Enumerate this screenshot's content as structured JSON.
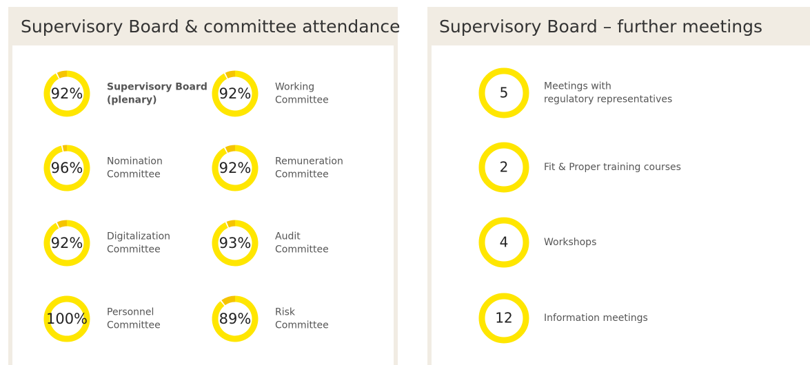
{
  "left_panel": {
    "title": "Supervisory Board & committee attendance",
    "items": [
      {
        "label_lines": [
          "Supervisory Board",
          "(plenary)"
        ],
        "value": 92,
        "value_label": "92%"
      },
      {
        "label_lines": [
          "Working",
          "Committee"
        ],
        "value": 92,
        "value_label": "92%"
      },
      {
        "label_lines": [
          "Nomination",
          "Committee"
        ],
        "value": 96,
        "value_label": "96%"
      },
      {
        "label_lines": [
          "Remuneration",
          "Committee"
        ],
        "value": 92,
        "value_label": "92%"
      },
      {
        "label_lines": [
          "Digitalization",
          "Committee"
        ],
        "value": 92,
        "value_label": "92%"
      },
      {
        "label_lines": [
          "Audit",
          "Committee"
        ],
        "value": 93,
        "value_label": "93%"
      },
      {
        "label_lines": [
          "Personnel",
          "Committee"
        ],
        "value": 100,
        "value_label": "100%"
      },
      {
        "label_lines": [
          "Risk",
          "Committee"
        ],
        "value": 89,
        "value_label": "89%"
      }
    ]
  },
  "right_panel": {
    "title": "Supervisory Board – further meetings",
    "items": [
      {
        "label_lines": [
          "Meetings with",
          "regulatory representatives"
        ],
        "value": 5
      },
      {
        "label_lines": [
          "Fit & Proper training courses"
        ],
        "value": 2
      },
      {
        "label_lines": [
          "Workshops"
        ],
        "value": 4
      },
      {
        "label_lines": [
          "Information meetings"
        ],
        "value": 12
      }
    ]
  }
}
